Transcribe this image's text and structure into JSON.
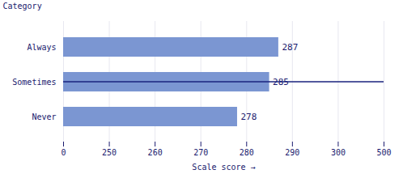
{
  "chart_data": {
    "type": "bar",
    "orientation": "horizontal",
    "categories": [
      "Never",
      "Sometimes",
      "Always"
    ],
    "values": [
      278,
      285,
      287
    ],
    "color": "#7b96d2",
    "xlabel": "Scale score",
    "ylabel": "Category",
    "xlim": [
      0,
      500
    ],
    "xticks": [
      0,
      250,
      260,
      270,
      280,
      290,
      300,
      500
    ],
    "grid": true,
    "data_labels": true
  }
}
